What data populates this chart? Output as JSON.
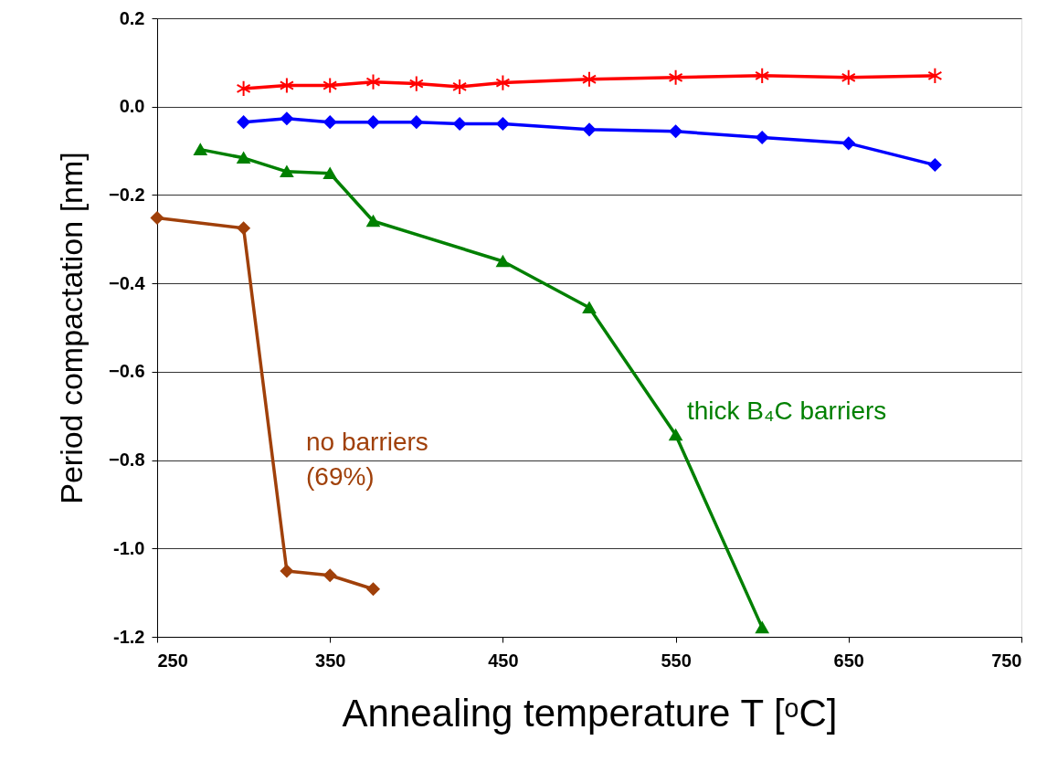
{
  "chart_data": {
    "type": "line",
    "xlabel": "Annealing temperature T [ᵒC]",
    "ylabel": "Period compactation [nm]",
    "xlim": [
      250,
      750
    ],
    "xticks": [
      250,
      350,
      450,
      550,
      650,
      750
    ],
    "ylim": [
      -1.2,
      0.2
    ],
    "yticks": [
      {
        "value": -1.2,
        "label": "-1.2"
      },
      -0.8,
      {
        "value": -1,
        "label": "-1.0"
      },
      -0.6,
      -0.4,
      -0.2,
      {
        "value": 0,
        "label": "0.0"
      },
      0.2
    ],
    "grid": "y",
    "line_style": "solid",
    "series": [
      {
        "color": "#ff0000",
        "marker": "cross",
        "x": [
          300,
          325,
          350,
          375,
          400,
          425,
          450,
          500,
          550,
          600,
          650,
          700
        ],
        "values": [
          0.041,
          0.048,
          0.048,
          0.056,
          0.052,
          0.045,
          0.054,
          0.062,
          0.066,
          0.07,
          0.066,
          0.07
        ]
      },
      {
        "color": "#0000ff",
        "marker": "diamond",
        "x": [
          300,
          325,
          350,
          375,
          400,
          425,
          450,
          500,
          550,
          600,
          650,
          700
        ],
        "values": [
          -0.035,
          -0.027,
          -0.035,
          -0.035,
          -0.035,
          -0.039,
          -0.039,
          -0.052,
          -0.056,
          -0.07,
          -0.083,
          -0.132
        ]
      },
      {
        "name": "thick B₄C barriers",
        "color": "#008000",
        "marker": "triangle",
        "x": [
          275,
          300,
          325,
          350,
          375,
          450,
          500,
          550,
          600
        ],
        "values": [
          -0.097,
          -0.116,
          -0.147,
          -0.151,
          -0.259,
          -0.35,
          -0.455,
          -0.743,
          -1.179
        ]
      },
      {
        "name": "no barriers (69%)",
        "color": "#a0400a",
        "marker": "diamond",
        "x": [
          250,
          300,
          325,
          350,
          375
        ],
        "values": [
          -0.252,
          -0.275,
          -1.051,
          -1.061,
          -1.092
        ]
      }
    ]
  }
}
